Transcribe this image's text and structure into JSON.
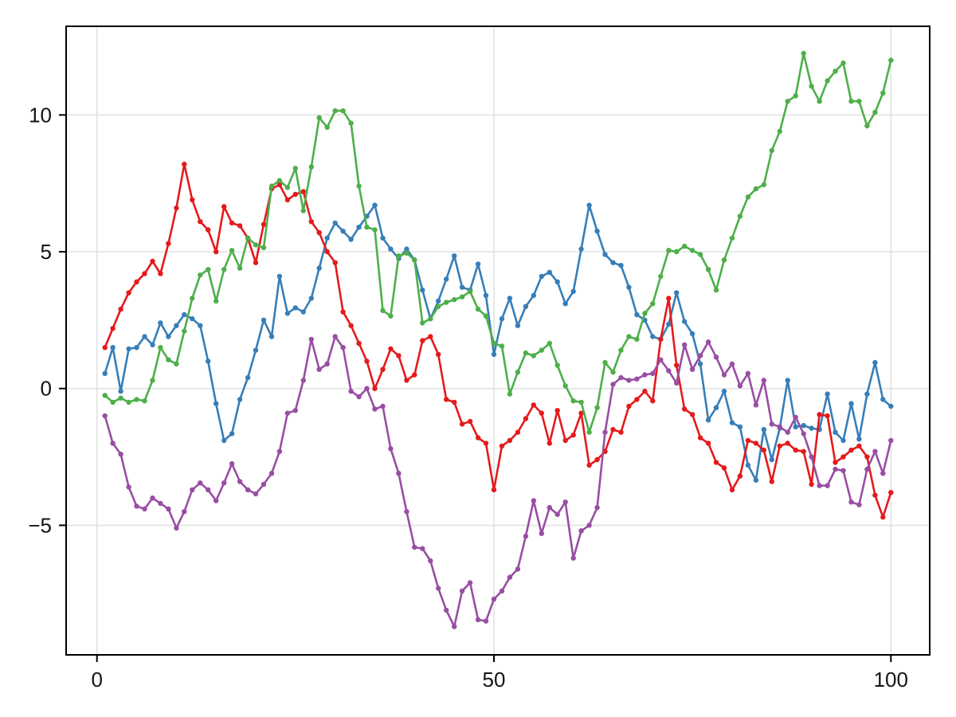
{
  "figure": {
    "background_color": "#ffffff",
    "frame_color": "#000000",
    "grid_color": "#e2e2e2",
    "tick_label_color": "#141414"
  },
  "chart_data": {
    "type": "line",
    "title": "",
    "xlabel": "",
    "ylabel": "",
    "legend": "none",
    "grid": true,
    "x_start": 1,
    "x_end": 100,
    "xlim": [
      -3.9,
      104.9
    ],
    "ylim": [
      -9.73,
      13.24
    ],
    "x_ticks": [
      0,
      50,
      100
    ],
    "x_tick_labels": [
      "0",
      "50",
      "100"
    ],
    "y_ticks": [
      -5,
      0,
      5,
      10
    ],
    "y_tick_labels": [
      "−5",
      "0",
      "5",
      "10"
    ],
    "marker": "circle",
    "series": [
      {
        "name": "series1-blue",
        "color": "#377EB8",
        "values": [
          0.55,
          1.5,
          -0.1,
          1.45,
          1.5,
          1.9,
          1.6,
          2.4,
          1.9,
          2.3,
          2.7,
          2.55,
          2.3,
          1.0,
          -0.55,
          -1.9,
          -1.65,
          -0.4,
          0.4,
          1.4,
          2.5,
          1.9,
          4.1,
          2.75,
          2.95,
          2.8,
          3.3,
          4.4,
          5.5,
          6.05,
          5.75,
          5.45,
          5.9,
          6.3,
          6.7,
          5.5,
          5.1,
          4.75,
          5.1,
          4.7,
          3.6,
          2.55,
          3.2,
          4.0,
          4.85,
          3.7,
          3.6,
          4.55,
          3.4,
          1.25,
          2.55,
          3.3,
          2.3,
          3.0,
          3.4,
          4.1,
          4.25,
          3.9,
          3.1,
          3.55,
          5.1,
          6.7,
          5.75,
          4.9,
          4.6,
          4.5,
          3.7,
          2.7,
          2.5,
          1.9,
          1.8,
          2.35,
          3.5,
          2.45,
          2.0,
          0.9,
          -1.15,
          -0.7,
          -0.1,
          -1.25,
          -1.4,
          -2.8,
          -3.35,
          -1.5,
          -2.6,
          -1.45,
          0.3,
          -1.4,
          -1.35,
          -1.45,
          -1.5,
          -0.2,
          -1.6,
          -1.9,
          -0.55,
          -1.85,
          -0.2,
          0.95,
          -0.4,
          -0.65
        ]
      },
      {
        "name": "series2-red",
        "color": "#E41A1C",
        "values": [
          1.5,
          2.2,
          2.9,
          3.5,
          3.9,
          4.2,
          4.65,
          4.2,
          5.3,
          6.6,
          8.2,
          6.9,
          6.1,
          5.8,
          5.0,
          6.65,
          6.05,
          5.95,
          5.5,
          4.6,
          6.0,
          7.3,
          7.45,
          6.9,
          7.1,
          7.2,
          6.1,
          5.7,
          5.0,
          4.6,
          2.8,
          2.3,
          1.65,
          1.0,
          0.0,
          0.7,
          1.45,
          1.2,
          0.3,
          0.5,
          1.75,
          1.9,
          1.25,
          -0.4,
          -0.5,
          -1.3,
          -1.2,
          -1.8,
          -2.0,
          -3.7,
          -2.1,
          -1.9,
          -1.6,
          -1.1,
          -0.6,
          -0.9,
          -2.0,
          -0.8,
          -1.9,
          -1.7,
          -0.9,
          -2.8,
          -2.6,
          -2.3,
          -1.5,
          -1.6,
          -0.65,
          -0.4,
          -0.1,
          -0.45,
          1.8,
          3.3,
          0.85,
          -0.75,
          -0.95,
          -1.8,
          -2.0,
          -2.7,
          -2.9,
          -3.7,
          -3.2,
          -1.9,
          -2.0,
          -2.25,
          -3.4,
          -2.1,
          -2.0,
          -2.25,
          -2.3,
          -3.5,
          -0.95,
          -1.0,
          -2.7,
          -2.5,
          -2.25,
          -2.1,
          -2.5,
          -3.9,
          -4.7,
          -3.8
        ]
      },
      {
        "name": "series3-green",
        "color": "#4DAF4A",
        "values": [
          -0.25,
          -0.5,
          -0.35,
          -0.5,
          -0.4,
          -0.45,
          0.3,
          1.5,
          1.05,
          0.9,
          2.1,
          3.3,
          4.15,
          4.35,
          3.2,
          4.35,
          5.05,
          4.4,
          5.5,
          5.25,
          5.15,
          7.4,
          7.6,
          7.35,
          8.05,
          6.5,
          8.1,
          9.9,
          9.55,
          10.15,
          10.15,
          9.7,
          7.4,
          5.9,
          5.8,
          2.85,
          2.65,
          4.85,
          4.95,
          4.7,
          2.4,
          2.55,
          3.0,
          3.15,
          3.25,
          3.35,
          3.55,
          2.9,
          2.65,
          1.65,
          1.55,
          -0.2,
          0.6,
          1.3,
          1.2,
          1.4,
          1.65,
          0.85,
          0.1,
          -0.45,
          -0.5,
          -1.6,
          -0.7,
          0.95,
          0.6,
          1.4,
          1.9,
          1.8,
          2.75,
          3.1,
          4.1,
          5.05,
          5.0,
          5.2,
          5.05,
          4.9,
          4.35,
          3.6,
          4.7,
          5.5,
          6.3,
          7.0,
          7.3,
          7.45,
          8.7,
          9.4,
          10.5,
          10.7,
          12.25,
          11.05,
          10.5,
          11.25,
          11.6,
          11.9,
          10.5,
          10.5,
          9.6,
          10.1,
          10.8,
          12.0
        ]
      },
      {
        "name": "series4-purple",
        "color": "#984EA3",
        "values": [
          -1.0,
          -2.0,
          -2.4,
          -3.6,
          -4.3,
          -4.4,
          -4.0,
          -4.2,
          -4.4,
          -5.1,
          -4.5,
          -3.7,
          -3.45,
          -3.7,
          -4.1,
          -3.45,
          -2.75,
          -3.4,
          -3.7,
          -3.85,
          -3.5,
          -3.1,
          -2.3,
          -0.9,
          -0.8,
          0.3,
          1.8,
          0.7,
          0.9,
          1.9,
          1.5,
          -0.1,
          -0.3,
          0.0,
          -0.75,
          -0.65,
          -2.2,
          -3.1,
          -4.5,
          -5.8,
          -5.85,
          -6.3,
          -7.3,
          -8.1,
          -8.7,
          -7.4,
          -7.1,
          -8.45,
          -8.5,
          -7.7,
          -7.4,
          -6.9,
          -6.6,
          -5.4,
          -4.1,
          -5.3,
          -4.35,
          -4.6,
          -4.15,
          -6.2,
          -5.2,
          -5.0,
          -4.35,
          -1.6,
          0.15,
          0.4,
          0.3,
          0.35,
          0.5,
          0.55,
          1.05,
          0.65,
          0.2,
          1.6,
          0.7,
          1.2,
          1.7,
          1.15,
          0.5,
          0.9,
          0.1,
          0.55,
          -0.6,
          0.3,
          -1.3,
          -1.4,
          -1.6,
          -1.05,
          -1.65,
          -2.5,
          -3.55,
          -3.55,
          -2.95,
          -3.0,
          -4.15,
          -4.25,
          -2.95,
          -2.3,
          -3.1,
          -1.9
        ]
      }
    ]
  }
}
